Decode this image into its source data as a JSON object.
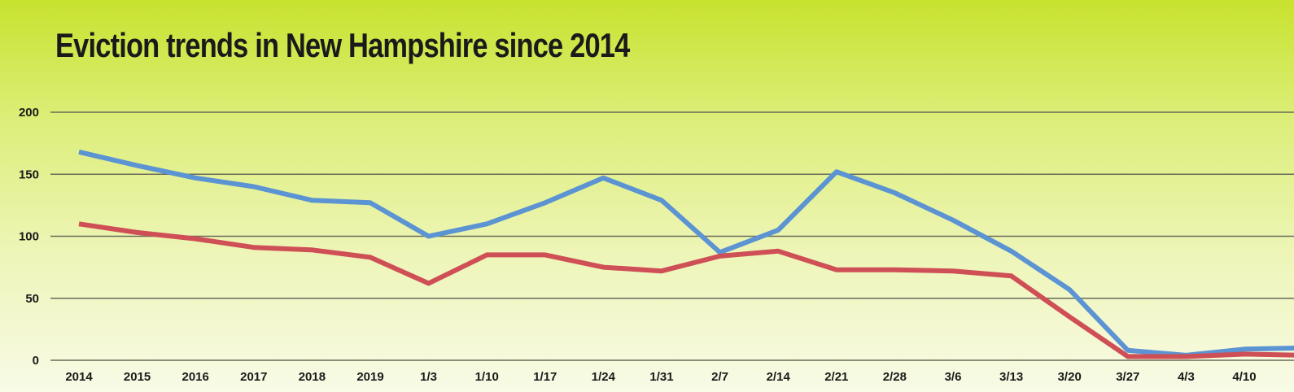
{
  "chart_data": {
    "type": "line",
    "title": "Eviction trends in New Hampshire since 2014",
    "xlabel": "",
    "ylabel": "",
    "categories": [
      "2014",
      "2015",
      "2016",
      "2017",
      "2018",
      "2019",
      "1/3",
      "1/10",
      "1/17",
      "1/24",
      "1/31",
      "2/7",
      "2/14",
      "2/21",
      "2/28",
      "3/6",
      "3/13",
      "3/20",
      "3/27",
      "4/3",
      "4/10",
      ""
    ],
    "yticks": [
      "0",
      "50",
      "100",
      "150",
      "200"
    ],
    "ylim": [
      0,
      200
    ],
    "grid": true,
    "series": [
      {
        "color": "#5b93d3",
        "values": [
          168,
          157,
          147,
          140,
          129,
          127,
          100,
          110,
          127,
          147,
          129,
          87,
          105,
          152,
          135,
          113,
          88,
          57,
          8,
          4,
          9,
          10
        ]
      },
      {
        "color": "#cf4f56",
        "values": [
          110,
          103,
          98,
          91,
          89,
          83,
          62,
          85,
          85,
          75,
          72,
          84,
          88,
          73,
          73,
          72,
          68,
          35,
          3,
          3,
          5,
          4
        ]
      }
    ]
  }
}
